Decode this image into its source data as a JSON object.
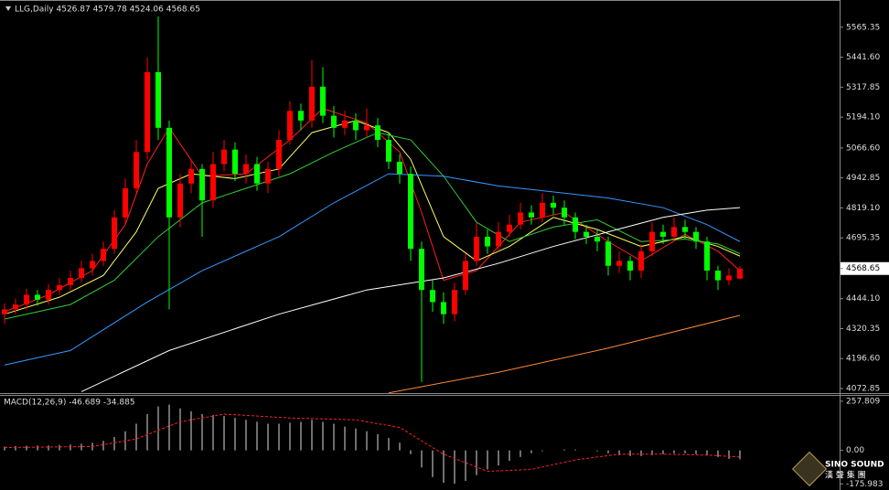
{
  "chart_data": [
    {
      "type": "candlestick",
      "title": "LLG,Daily  4526.87 4579.78 4524.06 4568.65",
      "open": [
        4380,
        4400,
        4420,
        4460,
        4440,
        4480,
        4500,
        4530,
        4570,
        4600,
        4650,
        4780,
        4900,
        5050,
        5380,
        5150,
        4780,
        4920,
        4980,
        4850,
        5000,
        5060,
        4960,
        5000,
        4920,
        4980,
        5100,
        5220,
        5180,
        5320,
        5200,
        5150,
        5180,
        5140,
        5160,
        5100,
        5010,
        4960,
        4650,
        4480,
        4430,
        4380,
        4480,
        4600,
        4700,
        4660,
        4720,
        4750,
        4800,
        4780,
        4840,
        4820,
        4780,
        4720,
        4700,
        4680,
        4580,
        4600,
        4560,
        4640,
        4720,
        4700,
        4740,
        4720,
        4680,
        4560,
        4520,
        4526.87
      ],
      "high": [
        4425,
        4445,
        4485,
        4480,
        4505,
        4530,
        4560,
        4600,
        4630,
        4680,
        4810,
        4940,
        5100,
        5440,
        5610,
        5180,
        4960,
        5020,
        5000,
        5050,
        5100,
        5090,
        5040,
        5030,
        5010,
        5140,
        5260,
        5250,
        5430,
        5400,
        5240,
        5220,
        5210,
        5230,
        5190,
        5130,
        5040,
        4990,
        4680,
        4520,
        4470,
        4510,
        4630,
        4760,
        4730,
        4760,
        4790,
        4840,
        4830,
        4880,
        4870,
        4850,
        4800,
        4750,
        4730,
        4700,
        4640,
        4620,
        4670,
        4760,
        4750,
        4780,
        4770,
        4740,
        4700,
        4580,
        4570,
        4579.78
      ],
      "low": [
        4340,
        4380,
        4400,
        4415,
        4420,
        4460,
        4480,
        4510,
        4540,
        4580,
        4630,
        4750,
        4880,
        5020,
        5100,
        4400,
        4740,
        4880,
        4700,
        4820,
        4970,
        4930,
        4920,
        4890,
        4880,
        4950,
        5080,
        5140,
        5150,
        5170,
        5110,
        5120,
        5100,
        5110,
        5070,
        4980,
        4920,
        4600,
        4100,
        4390,
        4340,
        4350,
        4460,
        4580,
        4630,
        4640,
        4700,
        4730,
        4750,
        4760,
        4790,
        4750,
        4690,
        4670,
        4640,
        4540,
        4550,
        4520,
        4530,
        4620,
        4670,
        4680,
        4690,
        4650,
        4520,
        4480,
        4500,
        4524.06
      ],
      "close": [
        4400,
        4420,
        4460,
        4440,
        4480,
        4500,
        4530,
        4570,
        4600,
        4650,
        4780,
        4900,
        5050,
        5380,
        5150,
        4780,
        4920,
        4980,
        4850,
        5000,
        5060,
        4960,
        5000,
        4920,
        4980,
        5100,
        5220,
        5180,
        5320,
        5200,
        5150,
        5180,
        5140,
        5160,
        5100,
        5010,
        4960,
        4650,
        4480,
        4430,
        4380,
        4480,
        4600,
        4700,
        4660,
        4720,
        4750,
        4800,
        4780,
        4840,
        4820,
        4780,
        4720,
        4700,
        4680,
        4580,
        4600,
        4560,
        4640,
        4720,
        4700,
        4740,
        4720,
        4680,
        4560,
        4520,
        4540,
        4568.65
      ],
      "up_color": "#ff0000",
      "down_color": "#00ff00",
      "series": [
        {
          "color": "#ff2020",
          "x": [
            0,
            4,
            8,
            11,
            13,
            15,
            18,
            22,
            26,
            29,
            33,
            36,
            38,
            40,
            43,
            47,
            51,
            55,
            58,
            62,
            65,
            67
          ],
          "values": [
            4390,
            4460,
            4560,
            4750,
            5000,
            5150,
            4950,
            4960,
            5100,
            5230,
            5170,
            5050,
            4800,
            4520,
            4560,
            4760,
            4800,
            4680,
            4600,
            4710,
            4640,
            4560
          ]
        },
        {
          "color": "#ffff66",
          "x": [
            0,
            5,
            9,
            12,
            14,
            17,
            21,
            25,
            28,
            32,
            35,
            37,
            40,
            43,
            46,
            50,
            54,
            58,
            62,
            65,
            67
          ],
          "values": [
            4380,
            4450,
            4540,
            4720,
            4900,
            4960,
            4940,
            4980,
            5130,
            5180,
            5130,
            5020,
            4700,
            4600,
            4660,
            4780,
            4730,
            4660,
            4700,
            4660,
            4620
          ]
        },
        {
          "color": "#33cc33",
          "x": [
            0,
            6,
            10,
            14,
            18,
            22,
            26,
            30,
            34,
            37,
            40,
            43,
            46,
            50,
            54,
            58,
            62,
            65,
            67
          ],
          "values": [
            4360,
            4420,
            4520,
            4700,
            4840,
            4900,
            4960,
            5050,
            5130,
            5100,
            4950,
            4760,
            4680,
            4740,
            4770,
            4680,
            4690,
            4670,
            4630
          ]
        },
        {
          "color": "#3399ff",
          "x": [
            0,
            6,
            13,
            18,
            25,
            30,
            35,
            40,
            45,
            51,
            55,
            60,
            64,
            67
          ],
          "values": [
            4170,
            4230,
            4430,
            4560,
            4700,
            4840,
            4960,
            4950,
            4910,
            4880,
            4860,
            4820,
            4750,
            4680
          ]
        },
        {
          "color": "#ffffff",
          "x": [
            7,
            15,
            25,
            33,
            40,
            45,
            50,
            55,
            60,
            64,
            67
          ],
          "values": [
            4060,
            4230,
            4380,
            4480,
            4530,
            4590,
            4660,
            4720,
            4780,
            4810,
            4820
          ]
        },
        {
          "color": "#ff8833",
          "x": [
            35,
            45,
            55,
            67
          ],
          "values": [
            4055,
            4140,
            4240,
            4375
          ]
        }
      ],
      "ylim": [
        4054,
        5678
      ],
      "yticks": [
        5565.35,
        {
          "value": 5441.6,
          "label": "5441.60"
        },
        5317.85,
        {
          "value": 5194.1,
          "label": "5194.10"
        },
        {
          "value": 5066.6,
          "label": "5066.60"
        },
        4942.85,
        {
          "value": 4819.1,
          "label": "4819.10"
        },
        4695.35,
        4568.65,
        {
          "value": 4444.1,
          "label": "4444.10"
        },
        4320.35,
        {
          "value": 4196.6,
          "label": "4196.60"
        },
        4072.85
      ]
    },
    {
      "type": "macd",
      "title": "MACD(12,26,9) -46.689 -34.885",
      "color": "#dddddd",
      "values": [
        20,
        22,
        24,
        25,
        26,
        28,
        30,
        35,
        40,
        50,
        70,
        100,
        140,
        190,
        230,
        240,
        220,
        205,
        190,
        185,
        180,
        170,
        160,
        150,
        140,
        140,
        145,
        150,
        160,
        150,
        140,
        125,
        115,
        100,
        85,
        65,
        40,
        -20,
        -90,
        -140,
        -170,
        -175,
        -160,
        -130,
        -100,
        -80,
        -55,
        -35,
        -15,
        -5,
        0,
        5,
        5,
        0,
        -5,
        -15,
        -25,
        -30,
        -30,
        -25,
        -20,
        -15,
        -15,
        -20,
        -25,
        -35,
        -45,
        -46.689
      ],
      "signal": {
        "color": "#ff2020",
        "x": [
          0,
          8,
          12,
          16,
          20,
          26,
          32,
          36,
          40,
          44,
          48,
          52,
          56,
          60,
          64,
          67
        ],
        "values": [
          15,
          20,
          60,
          150,
          190,
          170,
          160,
          120,
          -20,
          -110,
          -100,
          -50,
          -20,
          -20,
          -25,
          -34.885
        ]
      },
      "ylim": [
        -208,
        286
      ],
      "yticks": [
        257.809,
        {
          "value": 0,
          "label": "0.00"
        },
        -175.983
      ]
    }
  ],
  "logo": {
    "text": "SINO SOUND",
    "sub": "漢 聲 集 團"
  }
}
